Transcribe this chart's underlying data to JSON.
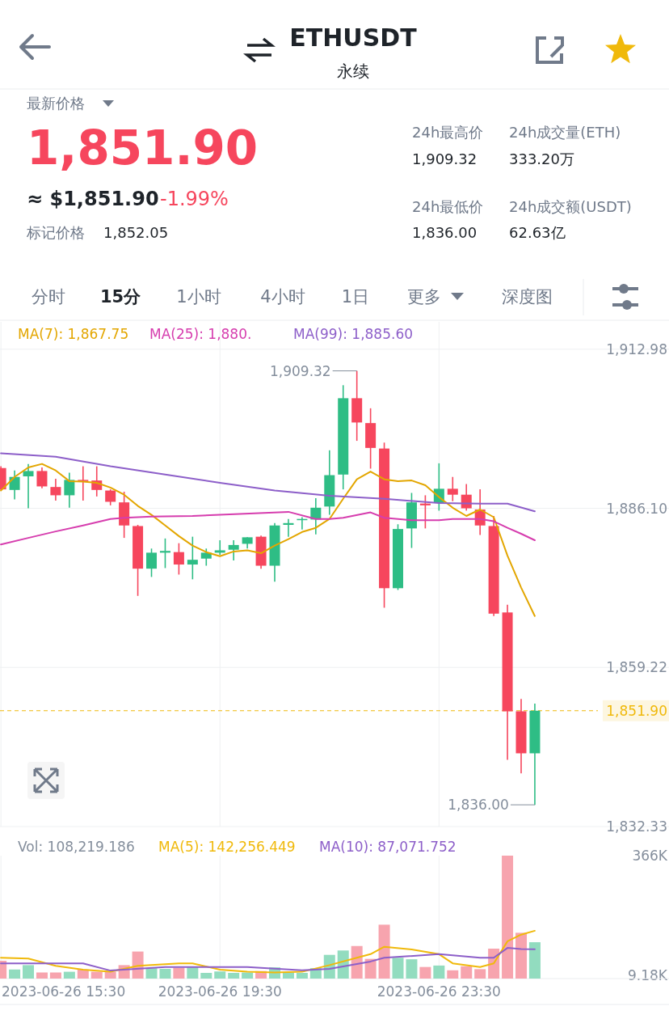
{
  "chart_data": [
    {
      "type": "other",
      "title": "ETHUSDT",
      "subtitle": "永续",
      "annotations": [
        "最新价格",
        "1,851.90",
        "≈ $1,851.90",
        "-1.99%",
        "标记价格",
        "1,852.05",
        "24h最高价",
        "1,909.32",
        "24h成交量(ETH)",
        "333.20万",
        "24h最低价",
        "1,836.00",
        "24h成交额(USDT)",
        "62.63亿",
        "分时",
        "15分",
        "1小时",
        "4小时",
        "1日",
        "更多",
        "深度图"
      ]
    },
    {
      "type": "candlestick",
      "x": [
        "2023-06-26T15:30",
        "2023-06-26T15:45",
        "2023-06-26T16:00",
        "2023-06-26T16:15",
        "2023-06-26T16:30",
        "2023-06-26T16:45",
        "2023-06-26T17:00",
        "2023-06-26T17:15",
        "2023-06-26T17:30",
        "2023-06-26T17:45",
        "2023-06-26T18:00",
        "2023-06-26T18:15",
        "2023-06-26T18:30",
        "2023-06-26T18:45",
        "2023-06-26T19:00",
        "2023-06-26T19:15",
        "2023-06-26T19:30",
        "2023-06-26T19:45",
        "2023-06-26T20:00",
        "2023-06-26T20:15",
        "2023-06-26T20:30",
        "2023-06-26T20:45",
        "2023-06-26T21:00",
        "2023-06-26T21:15",
        "2023-06-26T21:30",
        "2023-06-26T21:45",
        "2023-06-26T22:00",
        "2023-06-26T22:15",
        "2023-06-26T22:30",
        "2023-06-26T22:45",
        "2023-06-26T23:00",
        "2023-06-26T23:15",
        "2023-06-26T23:30",
        "2023-06-26T23:45",
        "2023-06-27T00:00",
        "2023-06-27T00:15",
        "2023-06-27T00:30",
        "2023-06-27T00:45",
        "2023-06-27T01:00",
        "2023-06-27T01:15"
      ],
      "ohlc": [
        [
          1892.9,
          1893.2,
          1889.1,
          1889.3
        ],
        [
          1889.2,
          1892.5,
          1887.6,
          1891.4
        ],
        [
          1891.5,
          1893.6,
          1886.1,
          1892.4
        ],
        [
          1892.4,
          1893.0,
          1889.5,
          1889.8
        ],
        [
          1889.7,
          1891.1,
          1887.4,
          1888.3
        ],
        [
          1888.3,
          1892.1,
          1886.2,
          1890.9
        ],
        [
          1890.9,
          1893.2,
          1887.4,
          1890.7
        ],
        [
          1890.8,
          1893.2,
          1888.1,
          1889.2
        ],
        [
          1889.1,
          1889.3,
          1886.6,
          1887.2
        ],
        [
          1887.1,
          1888.9,
          1881.1,
          1883.2
        ],
        [
          1883.1,
          1883.3,
          1871.3,
          1875.9
        ],
        [
          1875.9,
          1879.3,
          1874.5,
          1878.6
        ],
        [
          1878.6,
          1881.0,
          1876.0,
          1878.9
        ],
        [
          1878.7,
          1880.2,
          1874.9,
          1876.6
        ],
        [
          1876.6,
          1881.3,
          1874.1,
          1877.4
        ],
        [
          1877.6,
          1879.3,
          1876.4,
          1878.6
        ],
        [
          1878.6,
          1880.7,
          1878.2,
          1879.0
        ],
        [
          1879.1,
          1880.7,
          1877.3,
          1879.9
        ],
        [
          1880.1,
          1881.2,
          1879.3,
          1881.2
        ],
        [
          1881.3,
          1881.5,
          1875.9,
          1876.4
        ],
        [
          1876.4,
          1883.6,
          1873.7,
          1883.2
        ],
        [
          1883.3,
          1884.3,
          1881.3,
          1883.6
        ],
        [
          1884.1,
          1884.6,
          1882.5,
          1884.3
        ],
        [
          1884.2,
          1887.8,
          1881.7,
          1886.2
        ],
        [
          1886.4,
          1895.9,
          1885.0,
          1891.7
        ],
        [
          1891.8,
          1906.9,
          1889.3,
          1904.7
        ],
        [
          1904.7,
          1909.32,
          1897.5,
          1900.6
        ],
        [
          1900.5,
          1903.0,
          1892.8,
          1896.3
        ],
        [
          1896.2,
          1897.2,
          1869.3,
          1872.6
        ],
        [
          1872.6,
          1883.4,
          1872.3,
          1882.6
        ],
        [
          1882.7,
          1888.7,
          1879.4,
          1887.1
        ],
        [
          1886.9,
          1888.3,
          1882.7,
          1886.6
        ],
        [
          1887.0,
          1893.7,
          1885.7,
          1889.4
        ],
        [
          1889.4,
          1891.4,
          1887.3,
          1888.4
        ],
        [
          1888.4,
          1890.2,
          1885.7,
          1886.1
        ],
        [
          1885.9,
          1889.3,
          1881.6,
          1883.2
        ],
        [
          1883.1,
          1884.8,
          1867.9,
          1868.3
        ],
        [
          1868.5,
          1869.8,
          1843.6,
          1851.8
        ],
        [
          1851.8,
          1853.9,
          1841.3,
          1844.7
        ],
        [
          1844.7,
          1853.1,
          1836.0,
          1851.9
        ]
      ],
      "colors": [
        "#f6465d",
        "#2ebd85",
        "#2ebd85",
        "#f6465d",
        "#f6465d",
        "#2ebd85",
        "#f6465d",
        "#f6465d",
        "#f6465d",
        "#f6465d",
        "#f6465d",
        "#2ebd85",
        "#2ebd85",
        "#f6465d",
        "#2ebd85",
        "#2ebd85",
        "#2ebd85",
        "#2ebd85",
        "#2ebd85",
        "#f6465d",
        "#2ebd85",
        "#2ebd85",
        "#2ebd85",
        "#2ebd85",
        "#2ebd85",
        "#2ebd85",
        "#f6465d",
        "#f6465d",
        "#f6465d",
        "#2ebd85",
        "#2ebd85",
        "#f6465d",
        "#2ebd85",
        "#f6465d",
        "#f6465d",
        "#f6465d",
        "#f6465d",
        "#f6465d",
        "#f6465d",
        "#2ebd85"
      ],
      "series": [
        {
          "name": "MA(7): 1,867.75",
          "type": "line",
          "color": "#e3a600",
          "x": [
            "2023-06-26T15:30",
            "2023-06-26T15:45",
            "2023-06-26T16:00",
            "2023-06-26T16:15",
            "2023-06-26T16:30",
            "2023-06-26T16:45",
            "2023-06-26T17:00",
            "2023-06-26T17:15",
            "2023-06-26T17:30",
            "2023-06-26T17:45",
            "2023-06-26T18:00",
            "2023-06-26T18:15",
            "2023-06-26T18:30",
            "2023-06-26T18:45",
            "2023-06-26T19:00",
            "2023-06-26T19:15",
            "2023-06-26T19:30",
            "2023-06-26T19:45",
            "2023-06-26T20:00",
            "2023-06-26T20:15",
            "2023-06-26T20:30",
            "2023-06-26T20:45",
            "2023-06-26T21:00",
            "2023-06-26T21:15",
            "2023-06-26T21:30",
            "2023-06-26T21:45",
            "2023-06-26T22:00",
            "2023-06-26T22:15",
            "2023-06-26T22:30",
            "2023-06-26T22:45",
            "2023-06-26T23:00",
            "2023-06-26T23:15",
            "2023-06-26T23:30",
            "2023-06-26T23:45",
            "2023-06-27T00:00",
            "2023-06-27T00:15",
            "2023-06-27T00:30",
            "2023-06-27T00:45",
            "2023-06-27T01:00",
            "2023-06-27T01:15"
          ],
          "values": [
            1889.1,
            1891.4,
            1893.0,
            1893.6,
            1892.5,
            1890.7,
            1890.6,
            1890.4,
            1889.6,
            1888.4,
            1886.5,
            1885.0,
            1883.2,
            1881.4,
            1879.8,
            1878.7,
            1878.0,
            1878.8,
            1879.0,
            1878.5,
            1879.8,
            1880.9,
            1882.1,
            1882.8,
            1884.3,
            1887.7,
            1891.0,
            1892.3,
            1891.0,
            1890.7,
            1890.8,
            1890.0,
            1888.0,
            1886.2,
            1884.8,
            1885.9,
            1884.6,
            1878.1,
            1872.7,
            1867.9
          ]
        },
        {
          "name": "MA(25): 1,880.",
          "type": "line",
          "color": "#d63dae",
          "x": [
            "2023-06-26T15:30",
            "2023-06-26T16:00",
            "2023-06-26T16:30",
            "2023-06-26T17:00",
            "2023-06-26T17:30",
            "2023-06-26T17:45",
            "2023-06-26T18:15",
            "2023-06-26T19:00",
            "2023-06-26T19:30",
            "2023-06-26T20:45",
            "2023-06-26T21:15",
            "2023-06-26T21:30",
            "2023-06-26T21:45",
            "2023-06-26T22:15",
            "2023-06-26T22:30",
            "2023-06-26T23:00",
            "2023-06-26T23:30",
            "2023-06-26T23:45",
            "2023-06-27T00:15",
            "2023-06-27T00:30",
            "2023-06-27T00:45",
            "2023-06-27T01:00",
            "2023-06-27T01:15"
          ],
          "values": [
            1880.0,
            1881.1,
            1882.2,
            1883.2,
            1884.3,
            1884.5,
            1884.7,
            1884.8,
            1885.0,
            1885.5,
            1884.3,
            1884.3,
            1884.5,
            1885.4,
            1884.5,
            1884.1,
            1884.1,
            1884.3,
            1884.3,
            1883.9,
            1882.8,
            1881.8,
            1880.7
          ]
        },
        {
          "name": "MA(99): 1,885.60",
          "type": "line",
          "color": "#8d5fc9",
          "x": [
            "2023-06-26T15:30",
            "2023-06-26T16:30",
            "2023-06-26T17:30",
            "2023-06-26T18:30",
            "2023-06-26T19:30",
            "2023-06-26T20:30",
            "2023-06-26T21:30",
            "2023-06-26T22:30",
            "2023-06-26T23:30",
            "2023-06-27T00:15",
            "2023-06-27T00:45",
            "2023-06-27T01:15"
          ],
          "values": [
            1895.4,
            1894.8,
            1893.2,
            1891.8,
            1890.4,
            1889.1,
            1888.2,
            1887.7,
            1887.0,
            1886.9,
            1886.9,
            1885.6
          ]
        }
      ],
      "xlim": [
        "2023-06-26T15:29",
        "2023-06-27T03:42"
      ],
      "ylim": [
        1832.33,
        1917.6
      ],
      "yticks": [
        {
          "value": 1912.98,
          "label": "1,912.98"
        },
        {
          "value": 1886.1,
          "label": "1,886.10"
        },
        {
          "value": 1859.22,
          "label": "1,859.22"
        },
        {
          "value": 1832.33,
          "label": "1,832.33"
        }
      ],
      "xticks": [
        {
          "value": "2023-06-26T15:30",
          "label": null
        },
        {
          "value": "2023-06-26T19:30",
          "label": null
        },
        {
          "value": "2023-06-26T23:30",
          "label": null
        }
      ],
      "tick_labels": "y",
      "grid": true,
      "legend": "top left",
      "ref_lines": [
        {
          "axis": "y",
          "value": 1851.9,
          "label": "1,851.90",
          "color": "#f0b90b",
          "line_style": "dashed"
        }
      ],
      "annotations": [
        {
          "text": "1,909.32",
          "x": "2023-06-26T22:00",
          "y": 1909.32
        },
        {
          "text": "1,836.00",
          "x": "2023-06-27T01:15",
          "y": 1836.0
        }
      ]
    },
    {
      "type": "bar",
      "x": [
        "2023-06-26T15:30",
        "2023-06-26T15:45",
        "2023-06-26T16:00",
        "2023-06-26T16:15",
        "2023-06-26T16:30",
        "2023-06-26T16:45",
        "2023-06-26T17:00",
        "2023-06-26T17:15",
        "2023-06-26T17:30",
        "2023-06-26T17:45",
        "2023-06-26T18:00",
        "2023-06-26T18:15",
        "2023-06-26T18:30",
        "2023-06-26T18:45",
        "2023-06-26T19:00",
        "2023-06-26T19:15",
        "2023-06-26T19:30",
        "2023-06-26T19:45",
        "2023-06-26T20:00",
        "2023-06-26T20:15",
        "2023-06-26T20:30",
        "2023-06-26T20:45",
        "2023-06-26T21:00",
        "2023-06-26T21:15",
        "2023-06-26T21:30",
        "2023-06-26T21:45",
        "2023-06-26T22:00",
        "2023-06-26T22:15",
        "2023-06-26T22:30",
        "2023-06-26T22:45",
        "2023-06-26T23:00",
        "2023-06-26T23:15",
        "2023-06-26T23:30",
        "2023-06-26T23:45",
        "2023-06-27T00:00",
        "2023-06-27T00:15",
        "2023-06-27T00:30",
        "2023-06-27T00:45",
        "2023-06-27T01:00",
        "2023-06-27T01:15"
      ],
      "series": [
        {
          "type": "bar",
          "colors": [
            "#f7a4ae",
            "#92dcbf",
            "#92dcbf",
            "#f7a4ae",
            "#f7a4ae",
            "#92dcbf",
            "#f7a4ae",
            "#f7a4ae",
            "#f7a4ae",
            "#f7a4ae",
            "#f7a4ae",
            "#92dcbf",
            "#92dcbf",
            "#f7a4ae",
            "#92dcbf",
            "#92dcbf",
            "#92dcbf",
            "#92dcbf",
            "#92dcbf",
            "#f7a4ae",
            "#92dcbf",
            "#92dcbf",
            "#92dcbf",
            "#92dcbf",
            "#92dcbf",
            "#92dcbf",
            "#f7a4ae",
            "#f7a4ae",
            "#f7a4ae",
            "#92dcbf",
            "#92dcbf",
            "#f7a4ae",
            "#92dcbf",
            "#f7a4ae",
            "#f7a4ae",
            "#f7a4ae",
            "#f7a4ae",
            "#f7a4ae",
            "#f7a4ae",
            "#92dcbf"
          ],
          "values": [
            53.0,
            27.0,
            40.0,
            18.1,
            18.1,
            20.3,
            27.0,
            20.3,
            20.3,
            40.0,
            80.5,
            31.1,
            28.9,
            32.3,
            35.4,
            16.9,
            21.2,
            16.9,
            18.1,
            22.4,
            33.3,
            18.1,
            16.9,
            31.1,
            70.6,
            83.6,
            96.9,
            58.6,
            160.4,
            61.9,
            57.4,
            34.5,
            38.8,
            24.6,
            36.7,
            28.0,
            89.1,
            366,
            136.3,
            108.2
          ]
        },
        {
          "name": "MA(5): 142,256.449",
          "type": "line",
          "color": "#f0b90b",
          "x": [
            "2023-06-26T15:30",
            "2023-06-26T16:00",
            "2023-06-26T16:30",
            "2023-06-26T17:00",
            "2023-06-26T17:30",
            "2023-06-26T18:00",
            "2023-06-26T18:45",
            "2023-06-26T19:00",
            "2023-06-26T19:30",
            "2023-06-26T20:00",
            "2023-06-26T20:30",
            "2023-06-26T21:00",
            "2023-06-26T21:30",
            "2023-06-26T22:00",
            "2023-06-26T22:15",
            "2023-06-26T22:30",
            "2023-06-26T23:00",
            "2023-06-26T23:30",
            "2023-06-26T23:45",
            "2023-06-27T00:15",
            "2023-06-27T00:30",
            "2023-06-27T00:45",
            "2023-06-27T01:00",
            "2023-06-27T01:15"
          ],
          "values": [
            61.9,
            59.8,
            37.9,
            26.8,
            20.3,
            37.9,
            45.3,
            45.3,
            26.8,
            20.3,
            18.1,
            20.3,
            40.0,
            61.9,
            72.8,
            94.7,
            87.0,
            72.8,
            45.3,
            34.5,
            45.3,
            111.1,
            130.8,
            142.26
          ]
        },
        {
          "name": "MA(10): 87,071.752",
          "type": "line",
          "color": "#8d5fc9",
          "x": [
            "2023-06-26T15:30",
            "2023-06-26T17:00",
            "2023-06-26T17:30",
            "2023-06-26T18:30",
            "2023-06-26T20:00",
            "2023-06-26T21:00",
            "2023-06-26T21:30",
            "2023-06-26T22:15",
            "2023-06-26T22:30",
            "2023-06-26T23:30",
            "2023-06-27T00:15",
            "2023-06-27T00:30",
            "2023-06-27T00:45",
            "2023-06-27T01:00",
            "2023-06-27T01:15"
          ],
          "values": [
            45.3,
            45.3,
            23.9,
            34.5,
            34.5,
            24.6,
            28.9,
            50.9,
            61.9,
            72.8,
            61.9,
            61.9,
            91.3,
            88.2,
            87.07
          ]
        }
      ],
      "xlim": [
        "2023-06-26T15:29",
        "2023-06-27T03:42"
      ],
      "ylim": [
        0,
        366
      ],
      "yticks": [
        {
          "value": 366,
          "label": "366K"
        },
        {
          "value": 9.18,
          "label": "9.18K"
        }
      ],
      "xticks": [
        {
          "value": "2023-06-26T15:30",
          "label": "2023-06-26 15:30"
        },
        {
          "value": "2023-06-26T19:30",
          "label": "2023-06-26 19:30"
        },
        {
          "value": "2023-06-26T23:30",
          "label": "2023-06-26 23:30"
        }
      ],
      "grid": "x",
      "legend": "top left",
      "annotations": [
        "Vol: 108,219.186"
      ]
    }
  ]
}
